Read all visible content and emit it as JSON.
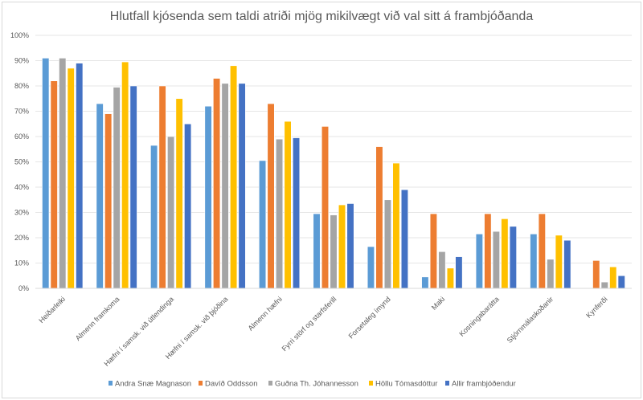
{
  "chart_data": {
    "type": "bar",
    "title": "Hlutfall kjósenda sem taldi atriði mjög mikilvægt við val sitt á frambjóðanda",
    "xlabel": "",
    "ylabel": "",
    "ylim": [
      0,
      100
    ],
    "yticks": [
      "0%",
      "10%",
      "20%",
      "30%",
      "40%",
      "50%",
      "60%",
      "70%",
      "80%",
      "90%",
      "100%"
    ],
    "grid": true,
    "legend_position": "bottom",
    "categories": [
      "Heiðarleiki",
      "Almenn framkoma",
      "Hæfni í samsk. við útlendinga",
      "Hæfni í samsk. við þjóðina",
      "Almenn hæfni",
      "Fyrri störf og starfsferill",
      "Forsetaleg ímynd",
      "Maki",
      "Kosningabarátta",
      "Stjórnmálaskoðanir",
      "Kynferði"
    ],
    "series": [
      {
        "name": "Andra Snæ Magnason",
        "color": "#5B9BD5",
        "values": [
          91,
          73,
          56.5,
          72,
          50.5,
          29.5,
          16.5,
          4.5,
          21.5,
          21.5,
          0
        ]
      },
      {
        "name": "Davíð Oddsson",
        "color": "#ED7D31",
        "values": [
          82,
          69,
          80,
          83,
          73,
          64,
          56,
          29.5,
          29.5,
          29.5,
          11
        ]
      },
      {
        "name": "Guðna Th. Jóhannesson",
        "color": "#A5A5A5",
        "values": [
          91,
          79.5,
          60,
          81,
          59,
          29,
          35,
          14.5,
          22.5,
          11.5,
          2.5
        ]
      },
      {
        "name": "Höllu Tómasdóttur",
        "color": "#FFC000",
        "values": [
          87,
          89.5,
          75,
          88,
          66,
          33,
          49.5,
          8,
          27.5,
          21,
          8.5
        ]
      },
      {
        "name": "Allir frambjóðendur",
        "color": "#4472C4",
        "values": [
          89,
          80,
          65,
          81,
          59.5,
          33.5,
          39,
          12.5,
          24.5,
          19,
          5
        ]
      }
    ]
  }
}
